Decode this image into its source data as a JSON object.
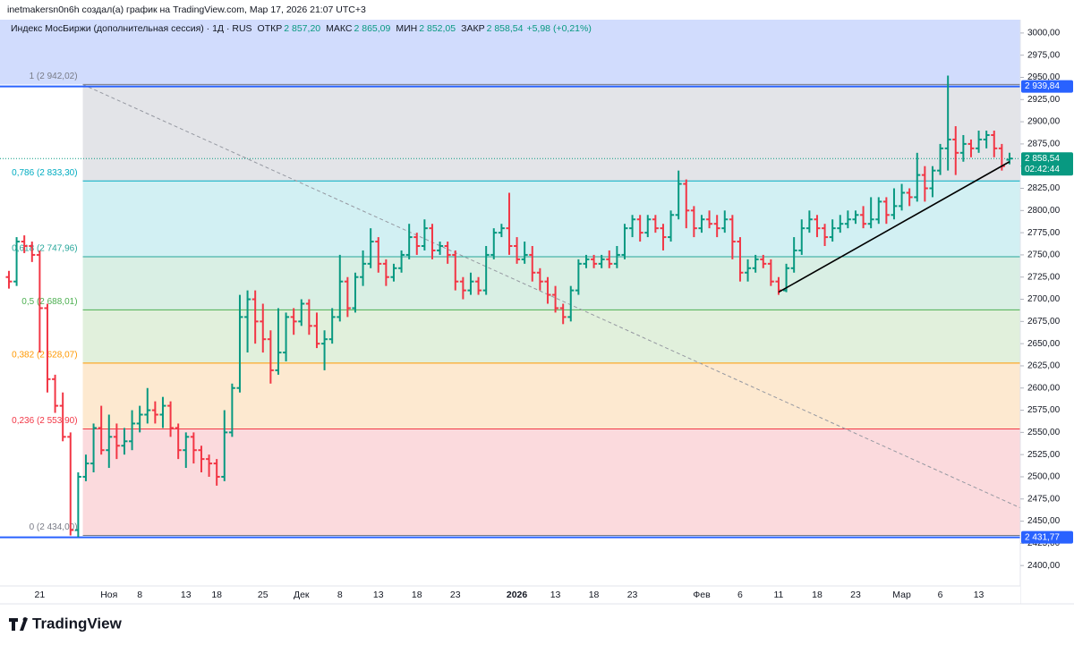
{
  "chart_data": {
    "type": "ohlc",
    "header": "inetmakersn0n6h создал(а) график на TradingView.com, Мар 17, 2026 21:07 UTC+3",
    "legend": {
      "symbol": "Индекс МосБиржи (дополнительная сессия) · 1Д · RUS",
      "items": [
        {
          "key": "ОТКР",
          "value": "2 857,20"
        },
        {
          "key": "МАКС",
          "value": "2 865,09"
        },
        {
          "key": "МИН",
          "value": "2 852,05"
        },
        {
          "key": "ЗАКР",
          "value": "2 858,54"
        }
      ],
      "change": "+5,98 (+0,21%)"
    },
    "brand": "TradingView",
    "up_color": "#089981",
    "down_color": "#f23645",
    "categories": [
      null,
      null,
      null,
      null,
      "21",
      null,
      null,
      null,
      null,
      null,
      null,
      null,
      null,
      "Ноя",
      null,
      null,
      null,
      "8",
      null,
      null,
      null,
      null,
      null,
      "13",
      null,
      null,
      null,
      "18",
      null,
      null,
      null,
      null,
      null,
      "25",
      null,
      null,
      null,
      null,
      "Дек",
      null,
      null,
      null,
      null,
      "8",
      null,
      null,
      null,
      null,
      "13",
      null,
      null,
      null,
      null,
      "18",
      null,
      null,
      null,
      null,
      "23",
      null,
      null,
      null,
      null,
      null,
      null,
      null,
      "2026",
      null,
      null,
      null,
      null,
      "13",
      null,
      null,
      null,
      null,
      "18",
      null,
      null,
      null,
      null,
      "23",
      null,
      null,
      null,
      null,
      null,
      null,
      null,
      null,
      "Фев",
      null,
      null,
      null,
      null,
      "6",
      null,
      null,
      null,
      null,
      "11",
      null,
      null,
      null,
      null,
      "18",
      null,
      null,
      null,
      null,
      "23",
      null,
      null,
      null,
      null,
      null,
      "Мар",
      null,
      null,
      null,
      null,
      "6",
      null,
      null,
      null,
      null,
      "13",
      null,
      null,
      null,
      null
    ],
    "bold_categories": [
      "2026"
    ],
    "open": [
      2725,
      2720,
      2765,
      2760,
      2750,
      2690,
      2610,
      2580,
      2545,
      2440,
      2500,
      2515,
      2555,
      2530,
      2545,
      2535,
      2540,
      2560,
      2570,
      2575,
      2570,
      2580,
      2555,
      2530,
      2545,
      2530,
      2520,
      2515,
      2500,
      2550,
      2600,
      2680,
      2700,
      2675,
      2655,
      2620,
      2640,
      2680,
      2675,
      2695,
      2670,
      2650,
      2655,
      2680,
      2720,
      2690,
      2725,
      2740,
      2765,
      2740,
      2725,
      2735,
      2750,
      2770,
      2760,
      2780,
      2755,
      2760,
      2750,
      2720,
      2710,
      2720,
      2710,
      2750,
      2775,
      2780,
      2760,
      2745,
      2750,
      2730,
      2720,
      2705,
      2690,
      2680,
      2710,
      2740,
      2745,
      2740,
      2745,
      2740,
      2750,
      2780,
      2790,
      2775,
      2790,
      2780,
      2770,
      2795,
      2830,
      2800,
      2780,
      2790,
      2785,
      2780,
      2790,
      2765,
      2730,
      2735,
      2745,
      2740,
      2720,
      2710,
      2735,
      2755,
      2780,
      2790,
      2780,
      2770,
      2780,
      2785,
      2790,
      2795,
      2785,
      2790,
      2810,
      2795,
      2805,
      2820,
      2815,
      2840,
      2825,
      2845,
      2870,
      2880,
      2865,
      2875,
      2870,
      2880,
      2885,
      2870,
      2857.2
    ],
    "high": [
      2732,
      2770,
      2772,
      2765,
      2755,
      2695,
      2615,
      2595,
      2550,
      2505,
      2525,
      2560,
      2580,
      2570,
      2560,
      2555,
      2575,
      2580,
      2600,
      2585,
      2590,
      2585,
      2560,
      2550,
      2550,
      2535,
      2525,
      2520,
      2575,
      2605,
      2705,
      2710,
      2710,
      2695,
      2665,
      2690,
      2685,
      2690,
      2700,
      2700,
      2685,
      2665,
      2690,
      2750,
      2725,
      2730,
      2755,
      2780,
      2770,
      2745,
      2740,
      2755,
      2785,
      2775,
      2790,
      2785,
      2765,
      2765,
      2755,
      2725,
      2730,
      2725,
      2760,
      2780,
      2785,
      2820,
      2770,
      2765,
      2760,
      2735,
      2725,
      2715,
      2695,
      2715,
      2745,
      2750,
      2750,
      2750,
      2755,
      2760,
      2785,
      2795,
      2795,
      2795,
      2795,
      2785,
      2800,
      2845,
      2835,
      2805,
      2795,
      2800,
      2795,
      2800,
      2795,
      2770,
      2745,
      2750,
      2750,
      2745,
      2725,
      2740,
      2770,
      2790,
      2800,
      2795,
      2785,
      2790,
      2795,
      2800,
      2800,
      2805,
      2815,
      2815,
      2815,
      2825,
      2830,
      2825,
      2865,
      2850,
      2850,
      2875,
      2952,
      2895,
      2885,
      2880,
      2890,
      2890,
      2890,
      2875,
      2865.09
    ],
    "low": [
      2712,
      2715,
      2752,
      2742,
      2640,
      2595,
      2572,
      2540,
      2434,
      2432,
      2495,
      2505,
      2525,
      2510,
      2520,
      2525,
      2530,
      2550,
      2560,
      2560,
      2555,
      2545,
      2520,
      2510,
      2515,
      2505,
      2500,
      2490,
      2495,
      2545,
      2595,
      2640,
      2650,
      2640,
      2605,
      2615,
      2630,
      2660,
      2670,
      2660,
      2645,
      2620,
      2650,
      2675,
      2680,
      2685,
      2715,
      2735,
      2730,
      2715,
      2720,
      2730,
      2745,
      2750,
      2755,
      2745,
      2750,
      2740,
      2710,
      2700,
      2705,
      2705,
      2705,
      2745,
      2770,
      2750,
      2740,
      2740,
      2720,
      2710,
      2695,
      2685,
      2672,
      2675,
      2705,
      2735,
      2735,
      2735,
      2735,
      2735,
      2745,
      2770,
      2765,
      2770,
      2775,
      2755,
      2765,
      2790,
      2780,
      2770,
      2775,
      2780,
      2770,
      2775,
      2745,
      2720,
      2720,
      2730,
      2735,
      2715,
      2705,
      2708,
      2730,
      2750,
      2775,
      2770,
      2760,
      2765,
      2775,
      2780,
      2785,
      2780,
      2780,
      2785,
      2785,
      2790,
      2800,
      2805,
      2810,
      2810,
      2815,
      2840,
      2845,
      2840,
      2855,
      2860,
      2865,
      2870,
      2860,
      2845,
      2852.05
    ],
    "close": [
      2720,
      2765,
      2760,
      2750,
      2690,
      2610,
      2580,
      2545,
      2440,
      2500,
      2515,
      2555,
      2530,
      2545,
      2535,
      2540,
      2560,
      2570,
      2575,
      2570,
      2580,
      2555,
      2530,
      2545,
      2530,
      2520,
      2515,
      2500,
      2550,
      2600,
      2680,
      2700,
      2675,
      2655,
      2620,
      2640,
      2680,
      2675,
      2695,
      2670,
      2650,
      2655,
      2680,
      2720,
      2690,
      2725,
      2740,
      2765,
      2740,
      2725,
      2735,
      2750,
      2770,
      2760,
      2780,
      2755,
      2760,
      2750,
      2720,
      2710,
      2720,
      2710,
      2750,
      2775,
      2780,
      2760,
      2745,
      2750,
      2730,
      2720,
      2705,
      2690,
      2680,
      2710,
      2740,
      2745,
      2740,
      2745,
      2740,
      2750,
      2780,
      2790,
      2775,
      2790,
      2780,
      2770,
      2795,
      2830,
      2800,
      2780,
      2790,
      2785,
      2780,
      2790,
      2765,
      2730,
      2735,
      2745,
      2740,
      2720,
      2710,
      2735,
      2755,
      2780,
      2790,
      2780,
      2770,
      2780,
      2785,
      2790,
      2795,
      2785,
      2790,
      2810,
      2795,
      2805,
      2820,
      2815,
      2840,
      2825,
      2845,
      2870,
      2880,
      2865,
      2875,
      2870,
      2880,
      2885,
      2870,
      2850,
      2858.54
    ],
    "xlim": [
      -1.16,
      131.4
    ],
    "ylim": [
      2377,
      3015
    ],
    "yticks": [
      {
        "value": 3000,
        "label": "3000,00"
      },
      {
        "value": 2975,
        "label": "2975,00"
      },
      {
        "value": 2950,
        "label": "2950,00"
      },
      {
        "value": 2925,
        "label": "2925,00"
      },
      {
        "value": 2900,
        "label": "2900,00"
      },
      {
        "value": 2875,
        "label": "2875,00"
      },
      {
        "value": 2850,
        "label": "2850,00"
      },
      {
        "value": 2825,
        "label": "2825,00"
      },
      {
        "value": 2800,
        "label": "2800,00"
      },
      {
        "value": 2775,
        "label": "2775,00"
      },
      {
        "value": 2750,
        "label": "2750,00"
      },
      {
        "value": 2725,
        "label": "2725,00"
      },
      {
        "value": 2700,
        "label": "2700,00"
      },
      {
        "value": 2675,
        "label": "2675,00"
      },
      {
        "value": 2650,
        "label": "2650,00"
      },
      {
        "value": 2625,
        "label": "2625,00"
      },
      {
        "value": 2600,
        "label": "2600,00"
      },
      {
        "value": 2575,
        "label": "2575,00"
      },
      {
        "value": 2550,
        "label": "2550,00"
      },
      {
        "value": 2525,
        "label": "2525,00"
      },
      {
        "value": 2500,
        "label": "2500,00"
      },
      {
        "value": 2475,
        "label": "2475,00"
      },
      {
        "value": 2450,
        "label": "2450,00"
      },
      {
        "value": 2425,
        "label": "2425,00"
      },
      {
        "value": 2400,
        "label": "2400,00"
      }
    ],
    "fib_start": 9.6,
    "fib_levels": [
      {
        "value": 2942.02,
        "label": "1 (2 942,02)",
        "color": "#787b86",
        "fill": "#e3e4e8"
      },
      {
        "value": 2833.3,
        "label": "0,786 (2 833,30)",
        "color": "#00acc1",
        "fill": "#d2f0f3"
      },
      {
        "value": 2747.96,
        "label": "0,618 (2 747,96)",
        "color": "#26a69a",
        "fill": "#d9efe4"
      },
      {
        "value": 2688.01,
        "label": "0,5 (2 688,01)",
        "color": "#4caf50",
        "fill": "#e1f0dc"
      },
      {
        "value": 2628.07,
        "label": "0,382 (2 628,07)",
        "color": "#ff9800",
        "fill": "#fde9d0"
      },
      {
        "value": 2553.9,
        "label": "0,236 (2 553,90)",
        "color": "#f23645",
        "fill": "#fbdadd"
      },
      {
        "value": 2434.0,
        "label": "0 (2 434,00)",
        "color": "#787b86"
      }
    ],
    "price_labels": [
      {
        "value": 2939.84,
        "label": "2 939,84",
        "color": "#2962ff",
        "line_style": "solid"
      },
      {
        "value": 2858.54,
        "label": "2 858,54",
        "sub": "02:42:44",
        "color": "#089981",
        "line_style": "dotted"
      },
      {
        "value": 2431.77,
        "label": "2 431,77",
        "color": "#2962ff",
        "line_style": "solid"
      }
    ],
    "trend_line": {
      "x": [
        100,
        130
      ],
      "y": [
        2708,
        2855
      ],
      "color": "#000000"
    },
    "projection_line": {
      "x": [
        9.6,
        131.4
      ],
      "y": [
        2942.02,
        2465
      ],
      "color": "#9598a1"
    }
  }
}
